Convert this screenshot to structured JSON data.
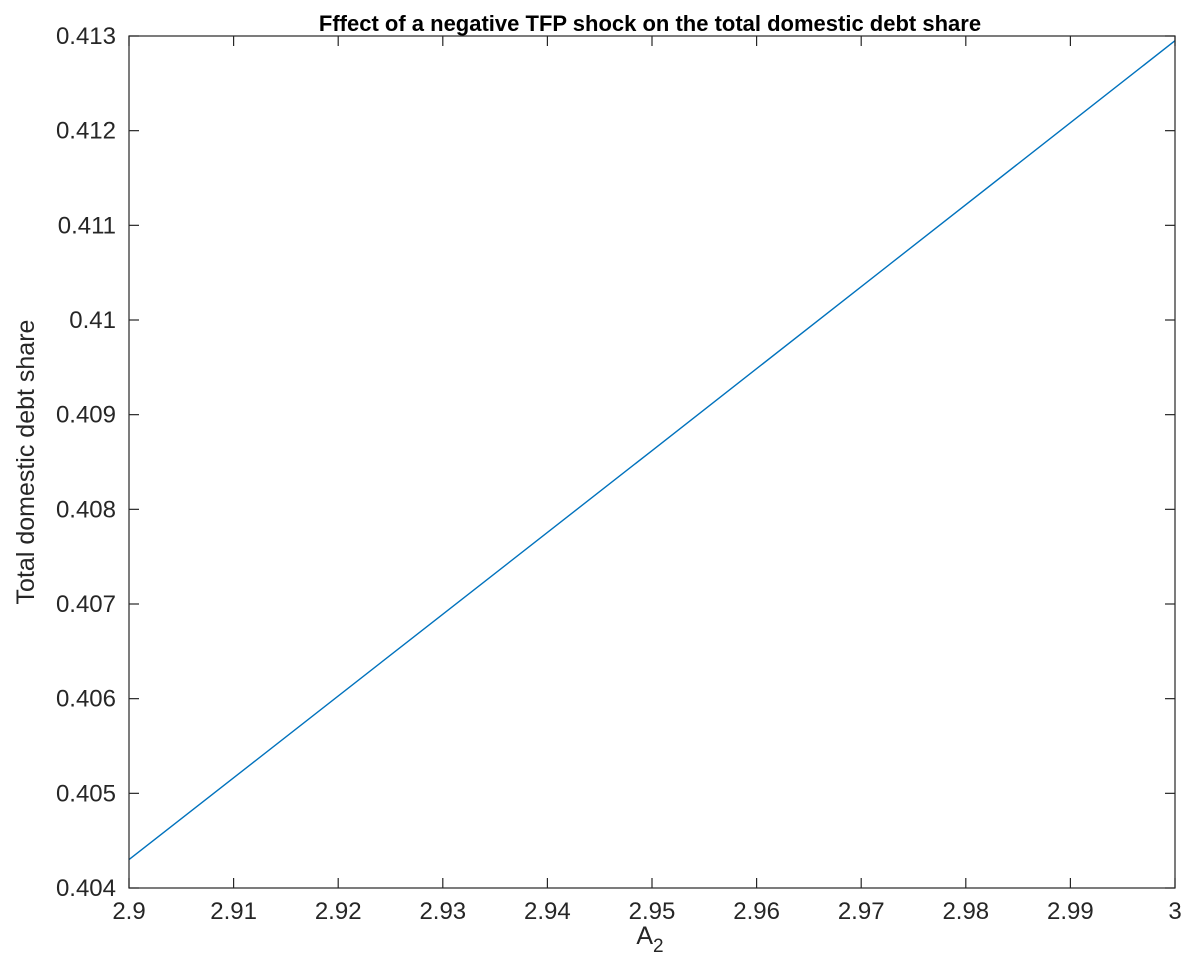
{
  "chart_data": {
    "type": "line",
    "title": "Fffect of a negative TFP shock on the total domestic debt share",
    "xlabel": "A",
    "xlabel_subscript": "2",
    "ylabel": "Total domestic debt share",
    "xlim": [
      2.9,
      3.0
    ],
    "ylim": [
      0.404,
      0.413
    ],
    "xticks": [
      2.9,
      2.91,
      2.92,
      2.93,
      2.94,
      2.95,
      2.96,
      2.97,
      2.98,
      2.99,
      3.0
    ],
    "xtick_labels": [
      "2.9",
      "2.91",
      "2.92",
      "2.93",
      "2.94",
      "2.95",
      "2.96",
      "2.97",
      "2.98",
      "2.99",
      "3"
    ],
    "yticks": [
      0.404,
      0.405,
      0.406,
      0.407,
      0.408,
      0.409,
      0.41,
      0.411,
      0.412,
      0.413
    ],
    "ytick_labels": [
      "0.404",
      "0.405",
      "0.406",
      "0.407",
      "0.408",
      "0.409",
      "0.41",
      "0.411",
      "0.412",
      "0.413"
    ],
    "grid": false,
    "series": [
      {
        "color": "#0072BD",
        "x": [
          2.9,
          2.95,
          3.0
        ],
        "y": [
          0.4043,
          0.40862,
          0.41295
        ]
      }
    ]
  }
}
